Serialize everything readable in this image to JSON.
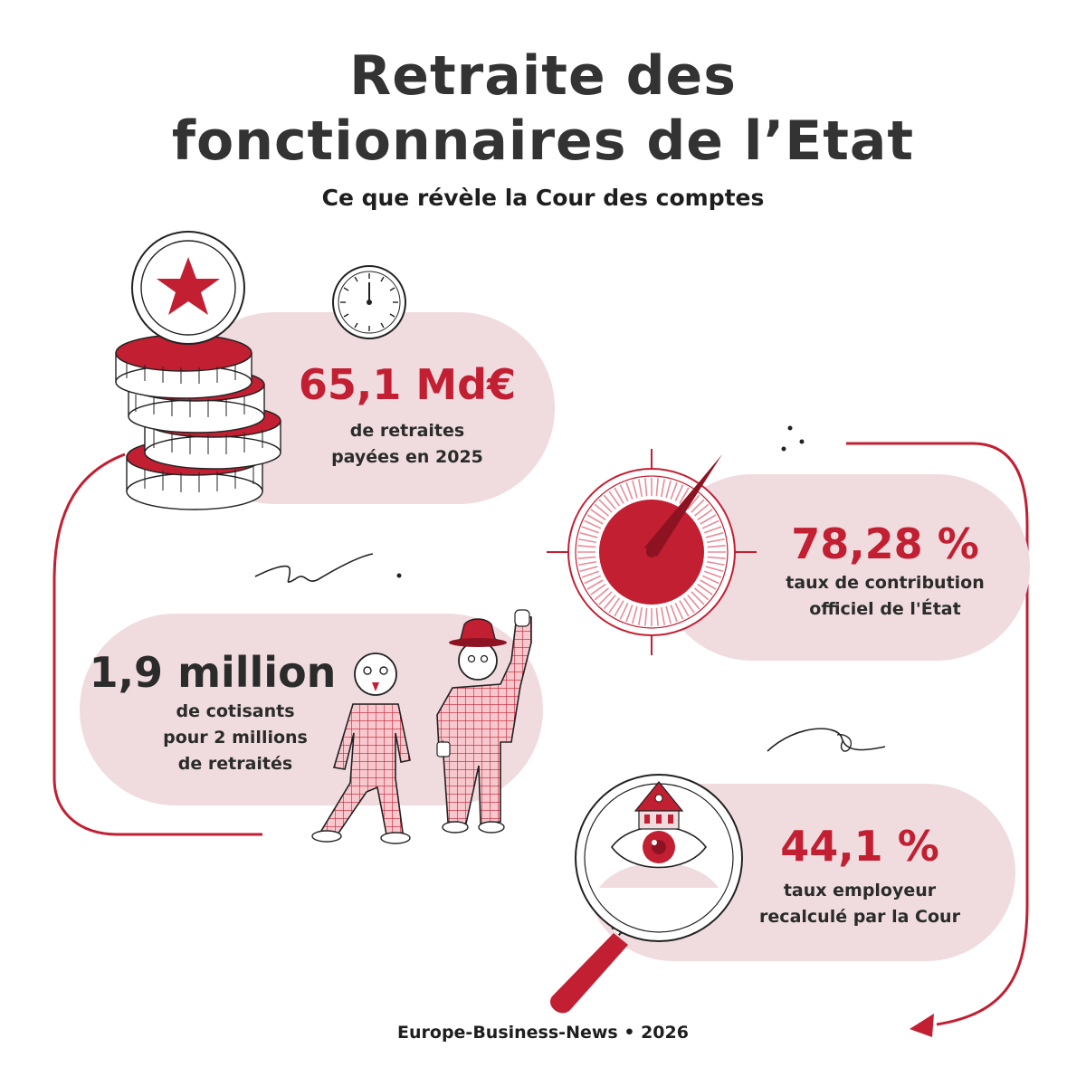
{
  "header": {
    "title_line1": "Retraite des",
    "title_line2": "fonctionnaires de l’Etat",
    "subtitle": "Ce que révèle la Cour des comptes"
  },
  "stats": [
    {
      "value": "65,1 Md€",
      "caption_line1": "de retraites",
      "caption_line2": "payées en 2025"
    },
    {
      "value": "78,28 %",
      "caption_line1": "taux de contribution",
      "caption_line2": "officiel de l'État"
    },
    {
      "value": "1,9 million",
      "caption_line1": "de cotisants",
      "caption_line2": "pour 2 millions",
      "caption_line3": "de retraités"
    },
    {
      "value": "44,1 %",
      "caption_line1": "taux employeur",
      "caption_line2": "recalculé par la Cour"
    }
  ],
  "footer": {
    "text": "Europe-Business-News • 2026"
  },
  "colors": {
    "accent": "#c21f32",
    "pill": "#f0dcdf",
    "text": "#2b2b2b"
  },
  "icons": [
    "star-coin-icon",
    "coin-stack-icon",
    "clock-icon",
    "gauge-icon",
    "people-icon",
    "magnifier-icon",
    "eye-icon",
    "building-icon",
    "arrow-icon"
  ]
}
